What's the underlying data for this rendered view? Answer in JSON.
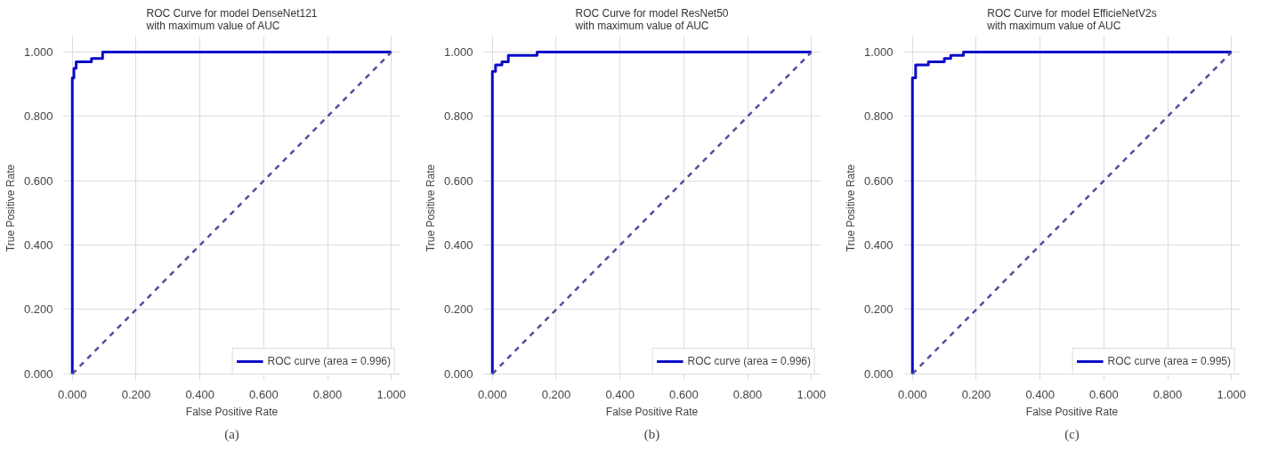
{
  "chart_data": [
    {
      "type": "line",
      "title": "ROC Curve for model DenseNet121\nwith maximum value of AUC",
      "xlabel": "False Positive Rate",
      "ylabel": "True Positive Rate",
      "xlim": [
        -0.03,
        1.03
      ],
      "ylim": [
        -0.02,
        1.05
      ],
      "xticks": [
        {
          "value": 0,
          "label": "0.000"
        },
        {
          "value": 0.2,
          "label": "0.200"
        },
        {
          "value": 0.4,
          "label": "0.400"
        },
        {
          "value": 0.6,
          "label": "0.600"
        },
        {
          "value": 0.8,
          "label": "0.800"
        },
        {
          "value": 1,
          "label": "1.000"
        }
      ],
      "yticks": [
        {
          "value": 0,
          "label": "0.000"
        },
        {
          "value": 0.2,
          "label": "0.200"
        },
        {
          "value": 0.4,
          "label": "0.400"
        },
        {
          "value": 0.6,
          "label": "0.600"
        },
        {
          "value": 0.8,
          "label": "0.800"
        },
        {
          "value": 1,
          "label": "1.000"
        }
      ],
      "grid": true,
      "legend": "bottom right",
      "annotations": [
        "(a)"
      ],
      "series": [
        {
          "name": "ROC curve (area = 0.996)",
          "color": "#0a0ac8",
          "line_style": "solid",
          "x": [
            0,
            0,
            0.005,
            0.005,
            0.012,
            0.012,
            0.06,
            0.06,
            0.095,
            0.095,
            1
          ],
          "values": [
            0,
            0.92,
            0.92,
            0.95,
            0.95,
            0.97,
            0.97,
            0.98,
            0.98,
            1,
            1
          ]
        },
        {
          "color": "#4f4f9c",
          "line_style": "dashed",
          "x": [
            0,
            1
          ],
          "values": [
            0,
            1
          ]
        }
      ]
    },
    {
      "type": "line",
      "title": "ROC Curve for model ResNet50\nwith maximum value of AUC",
      "xlabel": "False Positive Rate",
      "ylabel": "True Positive Rate",
      "xlim": [
        -0.03,
        1.03
      ],
      "ylim": [
        -0.02,
        1.05
      ],
      "xticks": [
        {
          "value": 0,
          "label": "0.000"
        },
        {
          "value": 0.2,
          "label": "0.200"
        },
        {
          "value": 0.4,
          "label": "0.400"
        },
        {
          "value": 0.6,
          "label": "0.600"
        },
        {
          "value": 0.8,
          "label": "0.800"
        },
        {
          "value": 1,
          "label": "1.000"
        }
      ],
      "yticks": [
        {
          "value": 0,
          "label": "0.000"
        },
        {
          "value": 0.2,
          "label": "0.200"
        },
        {
          "value": 0.4,
          "label": "0.400"
        },
        {
          "value": 0.6,
          "label": "0.600"
        },
        {
          "value": 0.8,
          "label": "0.800"
        },
        {
          "value": 1,
          "label": "1.000"
        }
      ],
      "grid": true,
      "legend": "bottom right",
      "annotations": [
        "(b)"
      ],
      "series": [
        {
          "name": "ROC curve (area = 0.996)",
          "color": "#0a0ac8",
          "line_style": "solid",
          "x": [
            0,
            0,
            0.01,
            0.01,
            0.03,
            0.03,
            0.05,
            0.05,
            0.14,
            0.14,
            1
          ],
          "values": [
            0,
            0.94,
            0.94,
            0.96,
            0.96,
            0.97,
            0.97,
            0.99,
            0.99,
            1,
            1
          ]
        },
        {
          "color": "#4f4f9c",
          "line_style": "dashed",
          "x": [
            0,
            1
          ],
          "values": [
            0,
            1
          ]
        }
      ]
    },
    {
      "type": "line",
      "title": "ROC Curve for model EfficieNetV2s\nwith maximum value of AUC",
      "xlabel": "False Positive Rate",
      "ylabel": "True Positive Rate",
      "xlim": [
        -0.03,
        1.03
      ],
      "ylim": [
        -0.02,
        1.05
      ],
      "xticks": [
        {
          "value": 0,
          "label": "0.000"
        },
        {
          "value": 0.2,
          "label": "0.200"
        },
        {
          "value": 0.4,
          "label": "0.400"
        },
        {
          "value": 0.6,
          "label": "0.600"
        },
        {
          "value": 0.8,
          "label": "0.800"
        },
        {
          "value": 1,
          "label": "1.000"
        }
      ],
      "yticks": [
        {
          "value": 0,
          "label": "0.000"
        },
        {
          "value": 0.2,
          "label": "0.200"
        },
        {
          "value": 0.4,
          "label": "0.400"
        },
        {
          "value": 0.6,
          "label": "0.600"
        },
        {
          "value": 0.8,
          "label": "0.800"
        },
        {
          "value": 1,
          "label": "1.000"
        }
      ],
      "grid": true,
      "legend": "bottom right",
      "annotations": [
        "(c)"
      ],
      "series": [
        {
          "name": "ROC curve (area = 0.995)",
          "color": "#0a0ac8",
          "line_style": "solid",
          "x": [
            0,
            0,
            0.01,
            0.01,
            0.05,
            0.05,
            0.1,
            0.1,
            0.12,
            0.12,
            0.16,
            0.16,
            1
          ],
          "values": [
            0,
            0.92,
            0.92,
            0.96,
            0.96,
            0.97,
            0.97,
            0.98,
            0.98,
            0.99,
            0.99,
            1,
            1
          ]
        },
        {
          "color": "#4f4f9c",
          "line_style": "dashed",
          "x": [
            0,
            1
          ],
          "values": [
            0,
            1
          ]
        }
      ]
    }
  ]
}
